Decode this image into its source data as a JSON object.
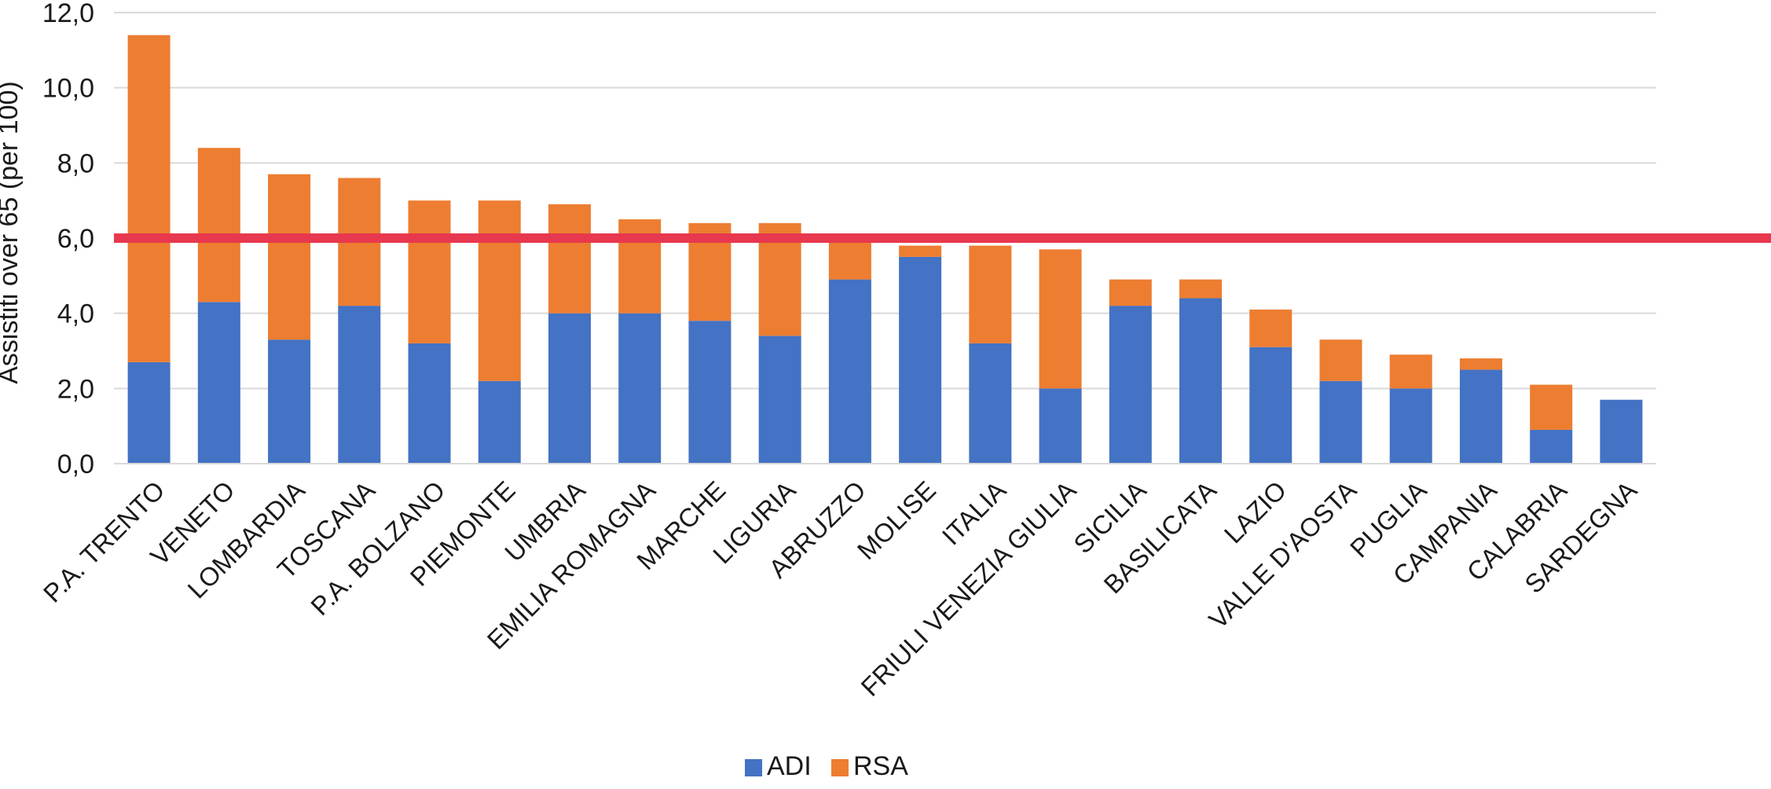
{
  "chart_data": {
    "type": "bar",
    "stacked": true,
    "categories": [
      "P.A. TRENTO",
      "VENETO",
      "LOMBARDIA",
      "TOSCANA",
      "P.A. BOLZANO",
      "PIEMONTE",
      "UMBRIA",
      "EMILIA ROMAGNA",
      "MARCHE",
      "LIGURIA",
      "ABRUZZO",
      "MOLISE",
      "ITALIA",
      "FRIULI VENEZIA GIULIA",
      "SICILIA",
      "BASILICATA",
      "LAZIO",
      "VALLE D'AOSTA",
      "PUGLIA",
      "CAMPANIA",
      "CALABRIA",
      "SARDEGNA"
    ],
    "series": [
      {
        "name": "ADI",
        "color": "#4472c4",
        "values": [
          2.7,
          4.3,
          3.3,
          4.2,
          3.2,
          2.2,
          4.0,
          4.0,
          3.8,
          3.4,
          4.9,
          5.5,
          3.2,
          2.0,
          4.2,
          4.4,
          3.1,
          2.2,
          2.0,
          2.5,
          0.9,
          1.7
        ]
      },
      {
        "name": "RSA",
        "color": "#ed7d31",
        "values": [
          8.7,
          4.1,
          4.4,
          3.4,
          3.8,
          4.8,
          2.9,
          2.5,
          2.6,
          3.0,
          1.1,
          0.3,
          2.6,
          3.7,
          0.7,
          0.5,
          1.0,
          1.1,
          0.9,
          0.3,
          1.2,
          0.0
        ]
      }
    ],
    "ylabel": "Assistiti over 65 (per 100)",
    "ylim": [
      0,
      12
    ],
    "yticks": [
      "0,0",
      "2,0",
      "4,0",
      "6,0",
      "8,0",
      "10,0",
      "12,0"
    ],
    "reference_line": {
      "value": 6.0,
      "color": "#e8384f"
    },
    "grid": true,
    "legend_position": "bottom"
  }
}
